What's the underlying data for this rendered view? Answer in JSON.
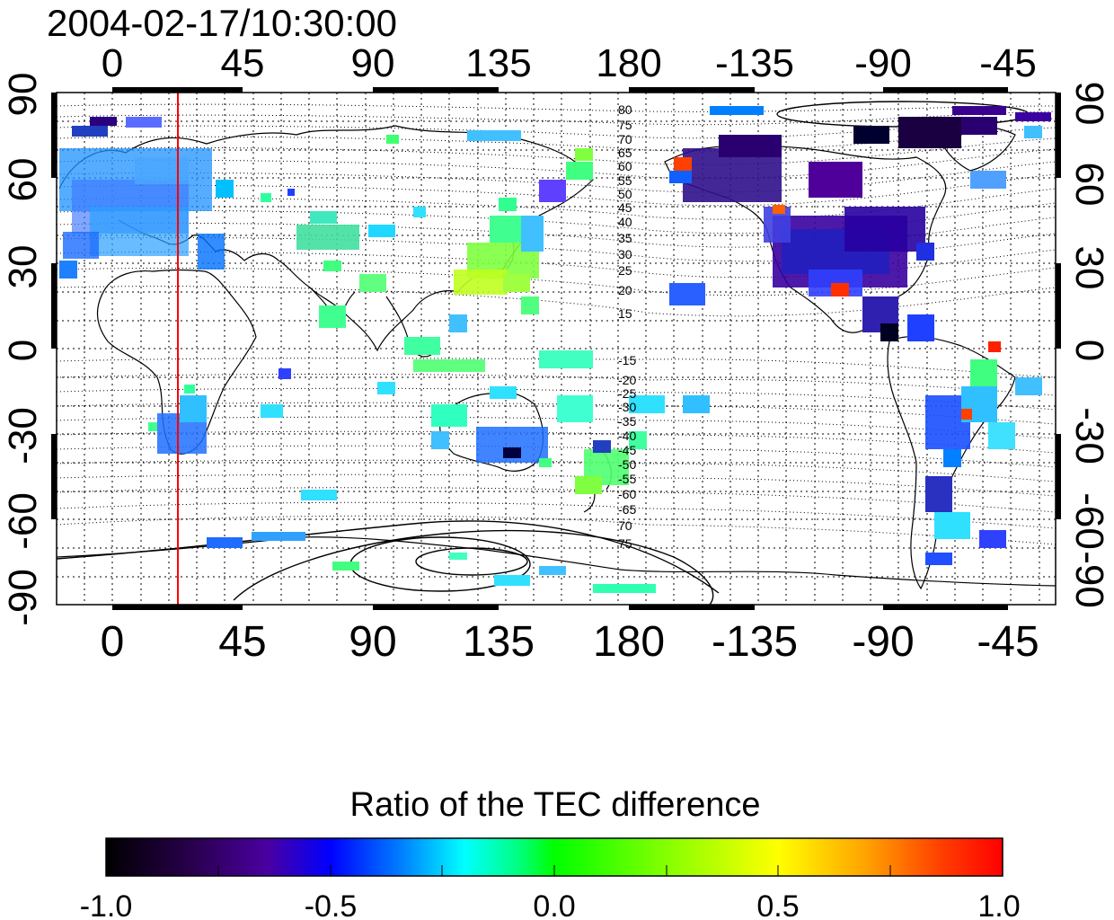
{
  "timestamp": "2004-02-17/10:30:00",
  "x_ticks": [
    "0",
    "45",
    "90",
    "135",
    "180",
    "-135",
    "-90",
    "-45"
  ],
  "y_ticks_left": [
    "90",
    "60",
    "30",
    "0",
    "-30",
    "-60",
    "-90"
  ],
  "y_ticks_right": [
    "90",
    "60",
    "30",
    "0",
    "-30",
    "-60",
    "-90"
  ],
  "contour_labels_north": [
    "80",
    "75",
    "70",
    "65",
    "60",
    "55",
    "50",
    "45",
    "40",
    "35",
    "30",
    "25",
    "20",
    "15"
  ],
  "contour_labels_south": [
    "-15",
    "-20",
    "-25",
    "-30",
    "-35",
    "-40",
    "-45",
    "-50",
    "-55",
    "-60",
    "-65",
    "70",
    "75"
  ],
  "colorbar": {
    "title": "Ratio of the TEC difference",
    "tick_labels": [
      "-1.0",
      "-0.5",
      "0.0",
      "0.5",
      "1.0"
    ],
    "range": [
      -1.0,
      1.0
    ],
    "colors": [
      "#000000",
      "#2a0050",
      "#4a00a0",
      "#0000ff",
      "#0080ff",
      "#00ffff",
      "#00ff80",
      "#00ff00",
      "#80ff00",
      "#ffff00",
      "#ffa000",
      "#ff4000",
      "#ff0000"
    ]
  },
  "accent": {
    "terminator_line": "#ff0000",
    "line_color": "#000000"
  }
}
